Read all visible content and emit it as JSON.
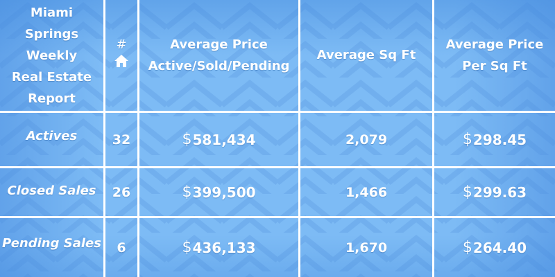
{
  "report": {
    "title_lines": [
      "Miami",
      "Springs",
      "Weekly",
      "Real Estate",
      "Report"
    ],
    "count_header": "#",
    "columns": {
      "avg_price": [
        "Average Price",
        "Active/Sold/Pending"
      ],
      "avg_sqft": "Average Sq Ft",
      "avg_price_per_sqft": [
        "Average Price",
        "Per Sq Ft"
      ]
    },
    "rows": [
      {
        "label": "Actives",
        "count": "32",
        "avg_price": "581,434",
        "avg_sqft": "2,079",
        "price_per_sqft": "298.45"
      },
      {
        "label": "Closed Sales",
        "count": "26",
        "avg_price": "399,500",
        "avg_sqft": "1,466",
        "price_per_sqft": "299.63"
      },
      {
        "label": "Pending Sales",
        "count": "6",
        "avg_price": "436,133",
        "avg_sqft": "1,670",
        "price_per_sqft": "264.40"
      }
    ],
    "currency_symbol": "$"
  },
  "icons": {
    "home": "home-icon"
  },
  "colors": {
    "background": "#7dbbf5",
    "background_dark": "#4f9ae8",
    "text": "#ffffff",
    "grid_lines": "#ffffff"
  }
}
